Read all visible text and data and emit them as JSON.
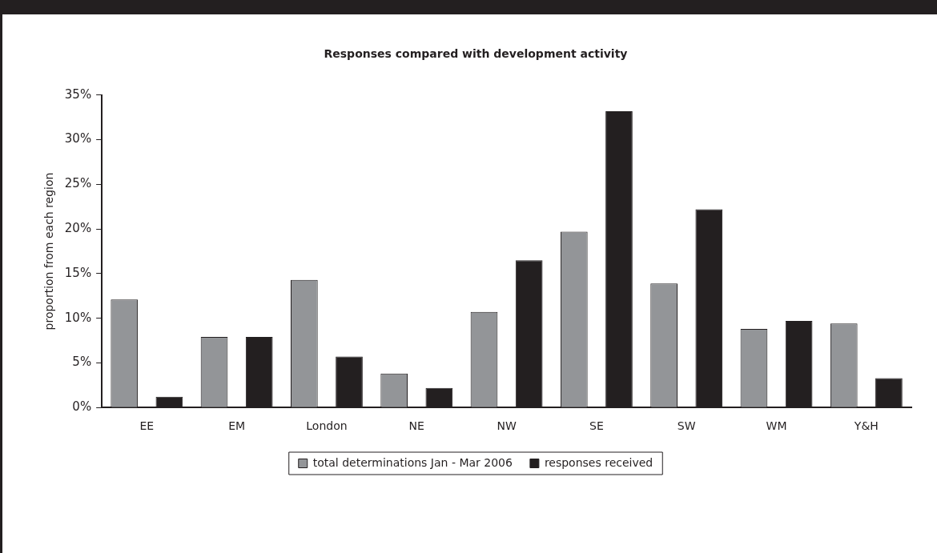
{
  "chart_data": {
    "type": "bar",
    "title": "Responses compared with development activity",
    "ylabel": "proportion from each region",
    "categories": [
      "EE",
      "EM",
      "London",
      "NE",
      "NW",
      "SE",
      "SW",
      "WM",
      "Y&H"
    ],
    "series": [
      {
        "name": "total determinations Jan - Mar 2006",
        "color": "#939598",
        "values": [
          12.1,
          7.9,
          14.3,
          3.8,
          10.7,
          19.7,
          13.9,
          8.8,
          9.4
        ]
      },
      {
        "name": "responses received",
        "color": "#231f20",
        "values": [
          1.2,
          7.9,
          5.7,
          2.2,
          16.5,
          33.2,
          22.2,
          9.7,
          3.3
        ]
      }
    ],
    "ylim": [
      0,
      35
    ],
    "yticks": [
      {
        "value": 0,
        "label": "0%"
      },
      {
        "value": 5,
        "label": "5%"
      },
      {
        "value": 10,
        "label": "10%"
      },
      {
        "value": 15,
        "label": "15%"
      },
      {
        "value": 20,
        "label": "20%"
      },
      {
        "value": 25,
        "label": "25%"
      },
      {
        "value": 30,
        "label": "30%"
      },
      {
        "value": 35,
        "label": "35%"
      }
    ],
    "grid": false,
    "legend": "bottom"
  }
}
